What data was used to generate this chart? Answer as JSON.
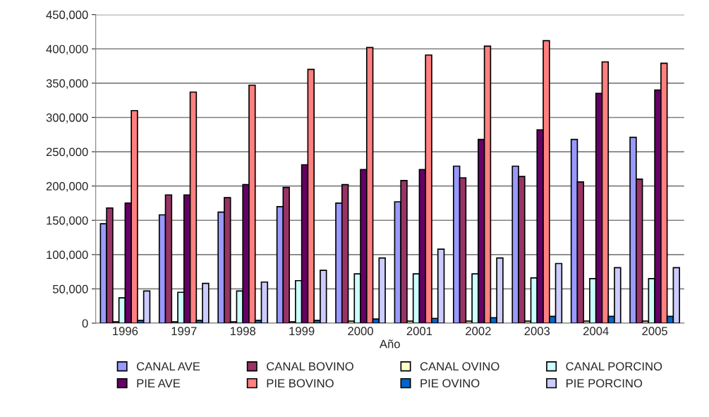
{
  "chart_data": {
    "type": "bar",
    "xlabel": "Año",
    "categories": [
      "1996",
      "1997",
      "1998",
      "1999",
      "2000",
      "2001",
      "2002",
      "2003",
      "2004",
      "2005"
    ],
    "series": [
      {
        "name": "CANAL AVE",
        "color": "#9999ff",
        "values": [
          145000,
          158000,
          162000,
          170000,
          175000,
          177000,
          229000,
          229000,
          268000,
          271000
        ]
      },
      {
        "name": "CANAL BOVINO",
        "color": "#993366",
        "values": [
          168000,
          187000,
          183000,
          198000,
          202000,
          208000,
          212000,
          214000,
          206000,
          210000
        ]
      },
      {
        "name": "CANAL OVINO",
        "color": "#ffffcc",
        "values": [
          2000,
          2000,
          2000,
          2000,
          3000,
          3000,
          3000,
          3000,
          3000,
          3000
        ]
      },
      {
        "name": "CANAL PORCINO",
        "color": "#ccffff",
        "values": [
          37000,
          45000,
          47000,
          62000,
          72000,
          72000,
          72000,
          66000,
          65000,
          65000
        ]
      },
      {
        "name": "PIE AVE",
        "color": "#660066",
        "values": [
          175000,
          187000,
          202000,
          231000,
          224000,
          224000,
          268000,
          282000,
          335000,
          340000
        ]
      },
      {
        "name": "PIE BOVINO",
        "color": "#ff8080",
        "values": [
          310000,
          337000,
          347000,
          370000,
          402000,
          391000,
          404000,
          412000,
          381000,
          379000
        ]
      },
      {
        "name": "PIE OVINO",
        "color": "#0066cc",
        "values": [
          4000,
          4000,
          4000,
          4000,
          6000,
          7000,
          8000,
          10000,
          10000,
          10000
        ]
      },
      {
        "name": "PIE PORCINO",
        "color": "#ccccff",
        "values": [
          47000,
          58000,
          60000,
          77000,
          95000,
          108000,
          95000,
          87000,
          81000,
          81000
        ]
      }
    ],
    "ylim": [
      0,
      450000
    ],
    "yticks": [
      0,
      {
        "value": 50000,
        "label": "50,000"
      },
      {
        "value": 100000,
        "label": "100,000"
      },
      {
        "value": 150000,
        "label": "150,000"
      },
      {
        "value": 200000,
        "label": "200,000"
      },
      {
        "value": 250000,
        "label": "250,000"
      },
      {
        "value": 300000,
        "label": "300,000"
      },
      {
        "value": 350000,
        "label": "350,000"
      },
      {
        "value": 400000,
        "label": "400,000"
      },
      {
        "value": 450000,
        "label": "450,000"
      }
    ],
    "grid": "y",
    "legend": "bottom"
  }
}
